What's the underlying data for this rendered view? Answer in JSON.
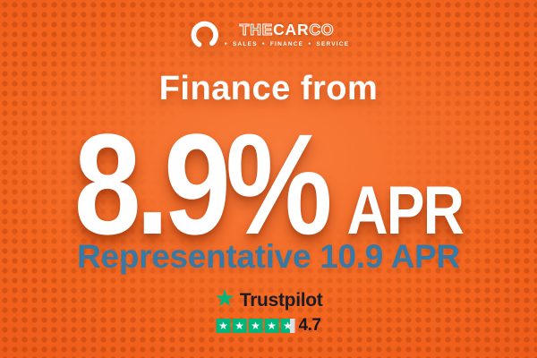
{
  "banner": {
    "colors": {
      "background_center": "#f87c3c",
      "background_base": "#f3661f",
      "background_edge": "#ea5517",
      "halftone_dot": "#b23c08",
      "headline_text": "#ffffff",
      "subheadline_text": "#3779a4",
      "trustpilot_green": "#00b67a",
      "trustpilot_text": "#1c1c26",
      "partial_star_gray": "#dcdce6"
    },
    "logo": {
      "icon": "car-co-ring-icon",
      "brand_the": "THE",
      "brand_car": "CAR",
      "brand_co": "CO",
      "tagline_bullet": "●",
      "tagline_items": [
        "SALES",
        "FINANCE",
        "SERVICE"
      ]
    },
    "kicker": "Finance from",
    "headline": {
      "rate": "8.9%",
      "unit": "APR"
    },
    "subheadline": "Representative 10.9 APR",
    "trustpilot": {
      "star_glyph": "★",
      "brand": "Trustpilot",
      "stars_total": 5,
      "star_fill_percents": [
        100,
        100,
        100,
        100,
        65
      ],
      "rating": "4.7"
    }
  }
}
